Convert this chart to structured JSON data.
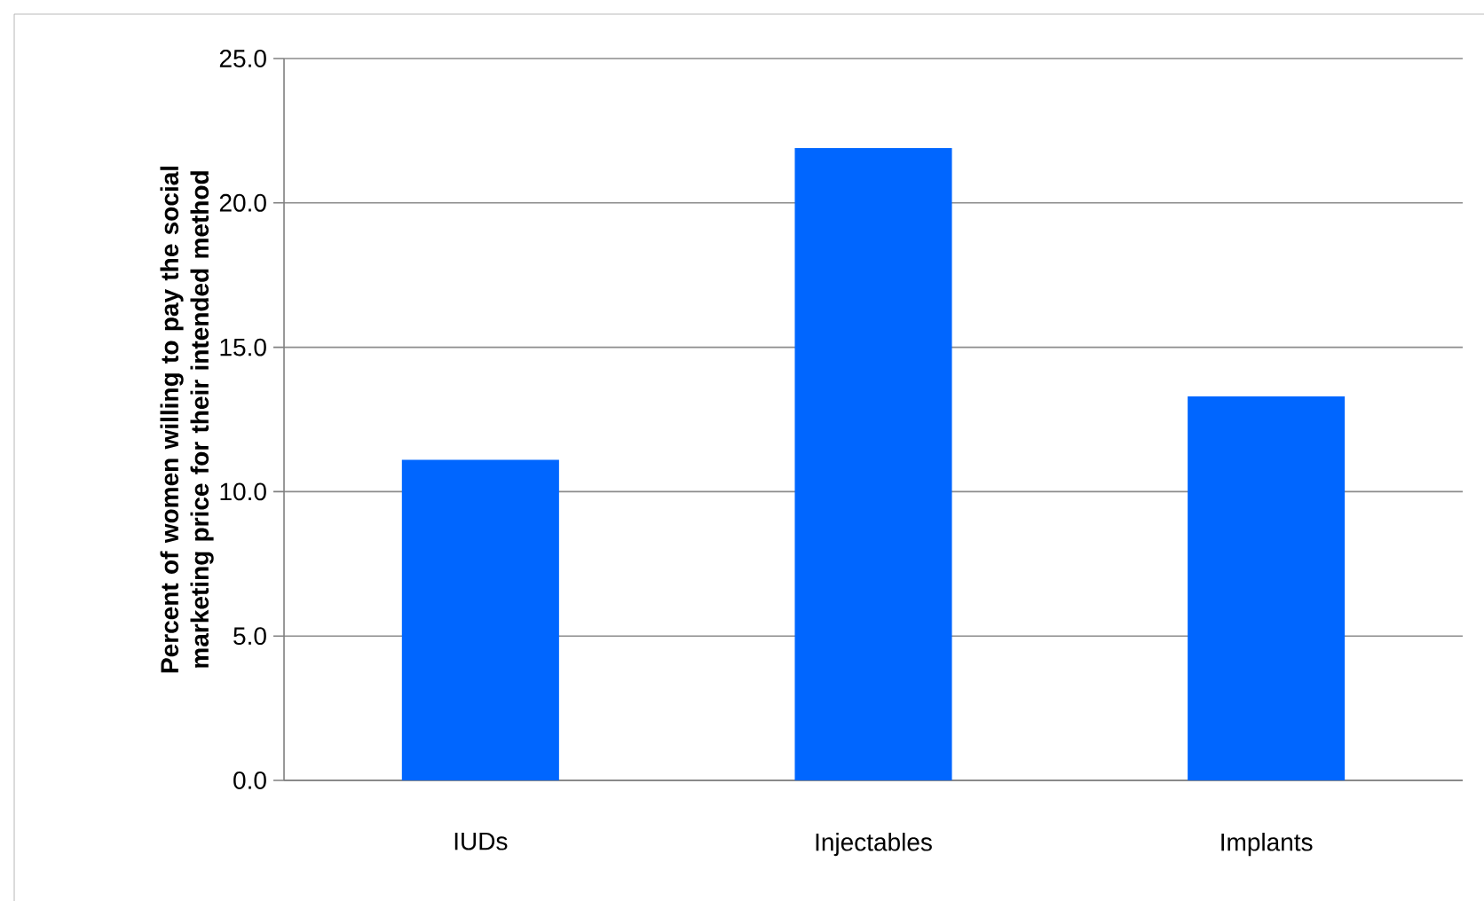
{
  "chart_data": {
    "type": "bar",
    "ylabel": "Percent of women willing to pay the social marketing price for their intended method",
    "categories": [
      "IUDs",
      "Injectables",
      "Implants"
    ],
    "values": [
      11.1,
      21.9,
      13.3
    ],
    "color": "#0066ff",
    "ylim": [
      0,
      25
    ],
    "yticks": [
      {
        "value": 0,
        "label": "0.0"
      },
      {
        "value": 5,
        "label": "5.0"
      },
      {
        "value": 10,
        "label": "10.0"
      },
      {
        "value": 15,
        "label": "15.0"
      },
      {
        "value": 20,
        "label": "20.0"
      },
      {
        "value": 25,
        "label": "25.0"
      }
    ],
    "grid": "y"
  }
}
